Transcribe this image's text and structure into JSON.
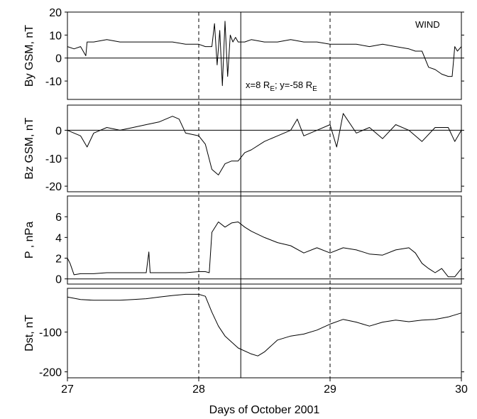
{
  "chart_data": {
    "type": "line",
    "spacecraft_label": "WIND",
    "xlabel": "Days of October 2001",
    "x_ticks": [
      "27",
      "28",
      "29",
      "30"
    ],
    "xlim": [
      27,
      30
    ],
    "vertical_markers": {
      "dashed": [
        28.0,
        29.0
      ],
      "solid": 28.32
    },
    "annotation": {
      "text_x": "x=8 R",
      "sub_x": "E",
      "text_y": "; y=-58 R",
      "sub_y": "E"
    },
    "panels": [
      {
        "id": "by",
        "ylabel": "By GSM, nT",
        "ylim": [
          -18,
          20
        ],
        "yticks": [
          -10,
          0,
          10,
          20
        ],
        "zero_line": true,
        "series": [
          {
            "x": [
              27.0,
              27.05,
              27.1,
              27.14,
              27.15,
              27.2,
              27.3,
              27.4,
              27.5,
              27.6,
              27.7,
              27.8,
              27.9,
              28.0,
              28.05,
              28.1,
              28.12,
              28.14,
              28.16,
              28.18,
              28.2,
              28.22,
              28.24,
              28.26,
              28.28,
              28.3,
              28.35,
              28.4,
              28.5,
              28.6,
              28.7,
              28.8,
              28.9,
              29.0,
              29.1,
              29.2,
              29.3,
              29.4,
              29.5,
              29.6,
              29.65,
              29.7,
              29.75,
              29.8,
              29.85,
              29.9,
              29.93,
              29.95,
              29.97,
              30.0
            ],
            "values": [
              5,
              4,
              5,
              1,
              7,
              7,
              8,
              7,
              7,
              7,
              7,
              7,
              6,
              6,
              5,
              5,
              15,
              -3,
              12,
              -12,
              16,
              -8,
              10,
              7,
              9,
              7,
              7,
              8,
              7,
              7,
              8,
              7,
              7,
              6,
              6,
              6,
              5,
              6,
              5,
              4,
              3,
              3,
              -4,
              -5,
              -7,
              -8,
              -8,
              5,
              3,
              5
            ]
          }
        ]
      },
      {
        "id": "bz",
        "ylabel": "Bz GSM, nT",
        "ylim": [
          -22,
          9
        ],
        "yticks": [
          -20,
          -10,
          0
        ],
        "zero_line": true,
        "series": [
          {
            "x": [
              27.0,
              27.05,
              27.1,
              27.15,
              27.2,
              27.3,
              27.4,
              27.5,
              27.6,
              27.7,
              27.8,
              27.85,
              27.9,
              28.0,
              28.05,
              28.1,
              28.15,
              28.2,
              28.25,
              28.3,
              28.35,
              28.4,
              28.5,
              28.6,
              28.7,
              28.75,
              28.8,
              28.9,
              29.0,
              29.05,
              29.1,
              29.2,
              29.3,
              29.4,
              29.5,
              29.6,
              29.7,
              29.8,
              29.9,
              29.95,
              30.0
            ],
            "values": [
              0,
              -1,
              -2,
              -6,
              -1,
              1,
              0,
              1,
              2,
              3,
              5,
              4,
              -1,
              -2,
              -5,
              -14,
              -16,
              -12,
              -11,
              -11,
              -8,
              -7,
              -4,
              -2,
              0,
              4,
              -2,
              0,
              2,
              -6,
              6,
              -1,
              1,
              -3,
              2,
              0,
              -4,
              1,
              1,
              -4,
              0
            ]
          }
        ]
      },
      {
        "id": "p",
        "ylabel": "P , nPa",
        "ylim": [
          -0.5,
          8
        ],
        "yticks": [
          0,
          2,
          4,
          6
        ],
        "zero_line": true,
        "series": [
          {
            "x": [
              27.0,
              27.02,
              27.05,
              27.1,
              27.2,
              27.3,
              27.4,
              27.5,
              27.6,
              27.62,
              27.63,
              27.7,
              27.8,
              27.9,
              28.0,
              28.05,
              28.08,
              28.1,
              28.15,
              28.2,
              28.25,
              28.3,
              28.35,
              28.4,
              28.5,
              28.6,
              28.7,
              28.8,
              28.9,
              29.0,
              29.1,
              29.2,
              29.3,
              29.4,
              29.5,
              29.6,
              29.65,
              29.7,
              29.75,
              29.8,
              29.85,
              29.9,
              29.95,
              30.0
            ],
            "values": [
              2,
              1.5,
              0.4,
              0.5,
              0.5,
              0.6,
              0.6,
              0.6,
              0.6,
              2.6,
              0.6,
              0.6,
              0.6,
              0.6,
              0.7,
              0.7,
              0.6,
              4.5,
              5.5,
              5.0,
              5.4,
              5.5,
              5.0,
              4.6,
              4.0,
              3.5,
              3.2,
              2.5,
              3.0,
              2.5,
              3.0,
              2.8,
              2.4,
              2.3,
              2.8,
              3.0,
              2.5,
              1.5,
              1.0,
              0.6,
              1.0,
              0.2,
              0.2,
              1.0
            ]
          }
        ]
      },
      {
        "id": "dst",
        "ylabel": "Dst, nT",
        "ylim": [
          -215,
          10
        ],
        "yticks": [
          -100,
          -200
        ],
        "zero_line": false,
        "series": [
          {
            "x": [
              27.0,
              27.1,
              27.2,
              27.3,
              27.4,
              27.5,
              27.6,
              27.7,
              27.8,
              27.9,
              28.0,
              28.05,
              28.1,
              28.15,
              28.2,
              28.3,
              28.4,
              28.45,
              28.5,
              28.6,
              28.7,
              28.8,
              28.9,
              29.0,
              29.1,
              29.2,
              29.3,
              29.4,
              29.5,
              29.6,
              29.7,
              29.8,
              29.9,
              30.0
            ],
            "values": [
              -12,
              -18,
              -20,
              -20,
              -20,
              -18,
              -16,
              -12,
              -8,
              -5,
              -5,
              -10,
              -50,
              -85,
              -110,
              -140,
              -155,
              -160,
              -150,
              -120,
              -110,
              -105,
              -95,
              -80,
              -68,
              -75,
              -85,
              -75,
              -70,
              -74,
              -70,
              -68,
              -62,
              -52
            ]
          }
        ]
      }
    ]
  }
}
